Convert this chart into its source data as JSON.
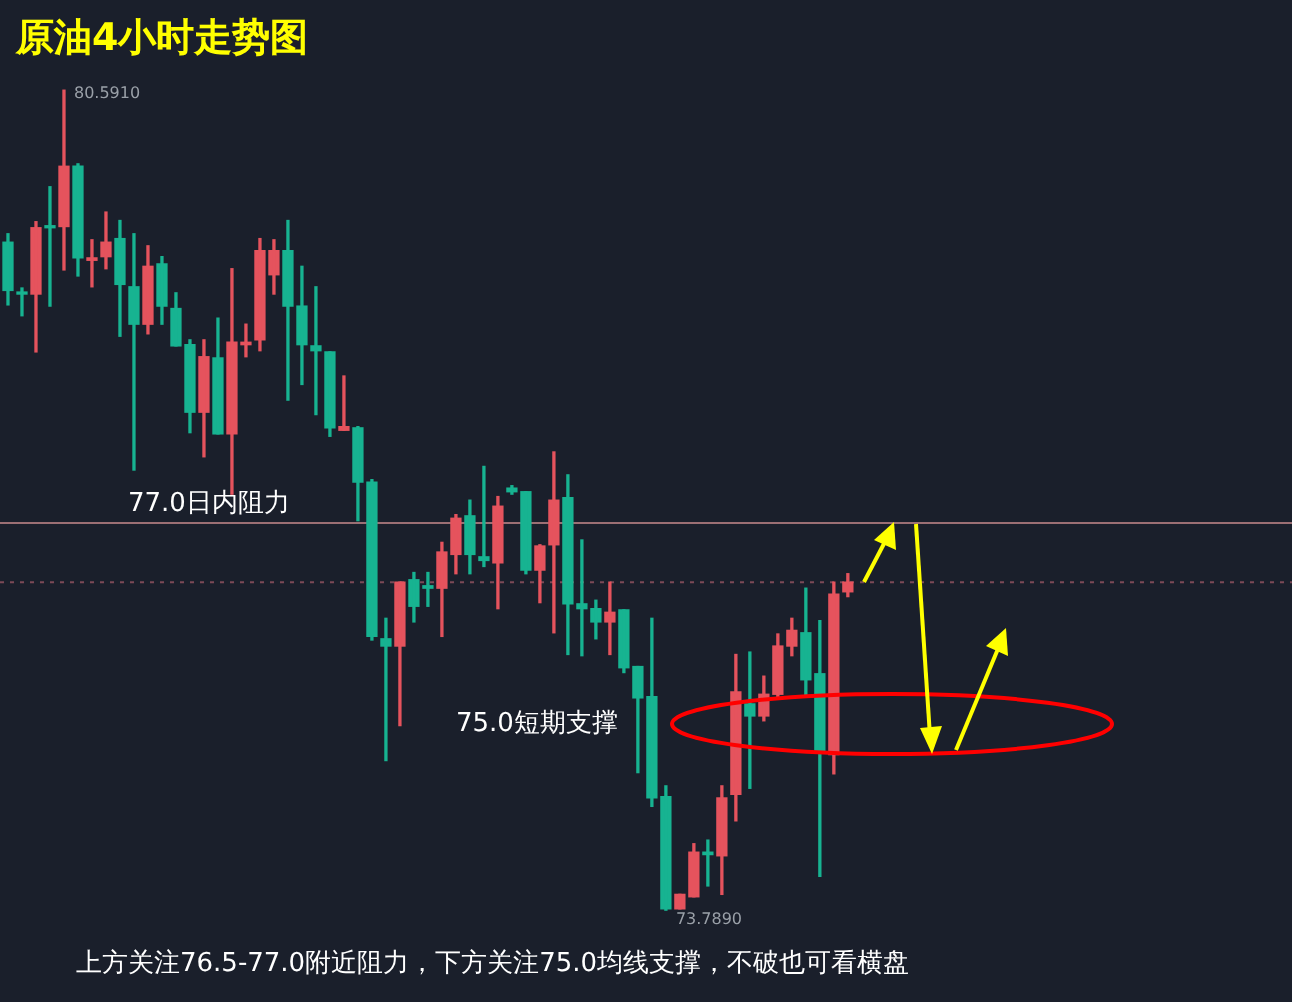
{
  "chart_data": {
    "type": "candlestick",
    "title": "原油4小时走势图",
    "categories": [
      null,
      null,
      null,
      null,
      null,
      null,
      null,
      null,
      null,
      null,
      null,
      null,
      null,
      null,
      null,
      null,
      null,
      null,
      null,
      null,
      null,
      null,
      null,
      null,
      null,
      null,
      null,
      null,
      null,
      null,
      null,
      null,
      null,
      null,
      null,
      null,
      null,
      null,
      null,
      null,
      null,
      null,
      null,
      null,
      null,
      null,
      null,
      null,
      null,
      null,
      null,
      null,
      null,
      null,
      null,
      null,
      null,
      null,
      null,
      null,
      null
    ],
    "ohlc": [
      [
        79.33,
        79.4,
        78.81,
        78.93
      ],
      [
        78.91,
        78.95,
        78.72,
        78.9
      ],
      [
        78.9,
        79.5,
        78.42,
        79.45
      ],
      [
        79.46,
        79.79,
        78.8,
        79.45
      ],
      [
        79.46,
        80.591,
        79.1,
        79.96
      ],
      [
        79.96,
        79.98,
        79.05,
        79.2
      ],
      [
        79.18,
        79.35,
        78.96,
        79.2
      ],
      [
        79.21,
        79.58,
        79.11,
        79.33
      ],
      [
        79.36,
        79.51,
        78.55,
        78.98
      ],
      [
        78.96,
        79.4,
        77.44,
        78.65
      ],
      [
        78.65,
        79.3,
        78.57,
        79.13
      ],
      [
        79.15,
        79.21,
        78.65,
        78.8
      ],
      [
        78.78,
        78.91,
        78.47,
        78.47
      ],
      [
        78.48,
        78.52,
        77.75,
        77.92
      ],
      [
        77.92,
        78.52,
        77.55,
        78.38
      ],
      [
        78.37,
        78.7,
        77.74,
        77.74
      ],
      [
        77.74,
        79.11,
        77.24,
        78.5
      ],
      [
        78.48,
        78.65,
        78.38,
        78.5
      ],
      [
        78.52,
        79.36,
        78.43,
        79.26
      ],
      [
        79.06,
        79.35,
        78.9,
        79.26
      ],
      [
        79.26,
        79.51,
        78.02,
        78.8
      ],
      [
        78.8,
        79.13,
        78.15,
        78.48
      ],
      [
        78.47,
        78.96,
        77.9,
        78.43
      ],
      [
        78.42,
        78.42,
        77.72,
        77.79
      ],
      [
        77.77,
        78.22,
        77.77,
        77.8
      ],
      [
        77.79,
        77.8,
        77.02,
        77.34
      ],
      [
        77.34,
        77.36,
        76.03,
        76.06
      ],
      [
        76.04,
        76.21,
        75.03,
        75.98
      ],
      [
        75.98,
        76.51,
        75.32,
        76.51
      ],
      [
        76.53,
        76.59,
        76.18,
        76.31
      ],
      [
        76.48,
        76.59,
        76.31,
        76.46
      ],
      [
        76.46,
        76.84,
        76.06,
        76.76
      ],
      [
        76.74,
        77.07,
        76.58,
        77.04
      ],
      [
        77.06,
        77.19,
        76.58,
        76.74
      ],
      [
        76.72,
        77.47,
        76.64,
        76.69
      ],
      [
        76.67,
        77.22,
        76.29,
        77.14
      ],
      [
        77.29,
        77.31,
        77.24,
        77.26
      ],
      [
        77.26,
        77.26,
        76.58,
        76.61
      ],
      [
        76.61,
        76.82,
        76.34,
        76.81
      ],
      [
        76.82,
        77.59,
        76.09,
        77.19
      ],
      [
        77.21,
        77.4,
        75.91,
        76.33
      ],
      [
        76.33,
        76.86,
        75.9,
        76.29
      ],
      [
        76.29,
        76.36,
        76.04,
        76.18
      ],
      [
        76.18,
        76.51,
        75.91,
        76.26
      ],
      [
        76.28,
        76.28,
        75.76,
        75.8
      ],
      [
        75.81,
        75.81,
        74.93,
        75.55
      ],
      [
        75.56,
        76.21,
        74.65,
        74.72
      ],
      [
        74.73,
        74.82,
        73.789,
        73.8
      ],
      [
        73.8,
        73.92,
        73.8,
        73.92
      ],
      [
        73.9,
        74.34,
        73.9,
        74.27
      ],
      [
        74.27,
        74.37,
        73.99,
        74.25
      ],
      [
        74.24,
        74.82,
        73.92,
        74.72
      ],
      [
        74.75,
        75.91,
        74.53,
        75.6
      ],
      [
        75.5,
        75.93,
        74.8,
        75.4
      ],
      [
        75.4,
        75.73,
        75.36,
        75.58
      ],
      [
        75.58,
        76.08,
        75.56,
        75.98
      ],
      [
        75.98,
        76.21,
        75.9,
        76.11
      ],
      [
        76.09,
        76.46,
        75.56,
        75.7
      ],
      [
        75.75,
        76.19,
        74.07,
        75.1
      ],
      [
        75.08,
        76.51,
        74.92,
        76.41
      ],
      [
        76.43,
        76.58,
        76.39,
        76.51
      ]
    ],
    "ref_lines": [
      {
        "axis": "y",
        "value": 77.0,
        "label": "77.0日内阻力",
        "color": "#9c6f74",
        "line_style": "solid"
      },
      {
        "axis": "y",
        "value": 76.51,
        "color": "#7c4a57",
        "line_style": "dotted"
      }
    ],
    "annotations": [
      "80.5910",
      "73.7890",
      "75.0短期支撑",
      "上方关注76.5-77.0附近阻力，下方关注75.0均线支撑，不破也可看横盘"
    ]
  }
}
